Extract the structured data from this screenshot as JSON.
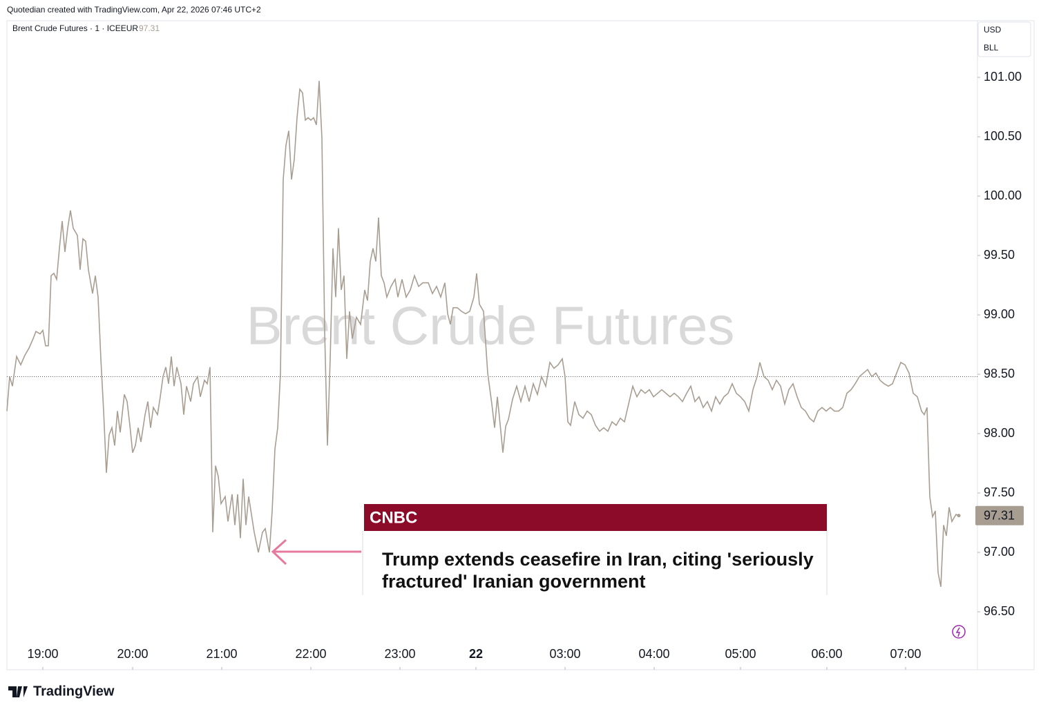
{
  "chart_data": {
    "type": "line",
    "header": "Quotedian created with TradingView.com, Apr 22, 2026 07:46 UTC+2",
    "legend_label": "Brent Crude Futures · 1 · ICEEUR",
    "last_value": 97.31,
    "watermark": "Brent Crude Futures",
    "currency": "USD",
    "unit": "BLL",
    "brand": "TradingView",
    "annotation": {
      "source": "CNBC",
      "headline": "Trump extends ceasefire in Iran, citing 'seriously fractured' Iranian government",
      "color": "#8c0b29",
      "arrow_color": "#e67a9c"
    },
    "color": "#a89d91",
    "reference_line": 98.48,
    "xlim": [
      0,
      1405
    ],
    "ylim": [
      96.012,
      101.477
    ],
    "xticks": [
      {
        "value": 52,
        "label": "19:00"
      },
      {
        "value": 182,
        "label": "20:00"
      },
      {
        "value": 311,
        "label": "21:00"
      },
      {
        "value": 440,
        "label": "22:00"
      },
      {
        "value": 569,
        "label": "23:00"
      },
      {
        "value": 679,
        "label": "22"
      },
      {
        "value": 808,
        "label": "03:00"
      },
      {
        "value": 937,
        "label": "04:00"
      },
      {
        "value": 1062,
        "label": "05:00"
      },
      {
        "value": 1187,
        "label": "06:00"
      },
      {
        "value": 1301,
        "label": "07:00"
      }
    ],
    "yticks": [
      {
        "value": 96.5,
        "label": "96.50"
      },
      {
        "value": 97,
        "label": "97.00"
      },
      {
        "value": 97.5,
        "label": "97.50"
      },
      {
        "value": 98,
        "label": "98.00"
      },
      {
        "value": 98.5,
        "label": "98.50"
      },
      {
        "value": 99,
        "label": "99.00"
      },
      {
        "value": 99.5,
        "label": "99.50"
      },
      {
        "value": 100,
        "label": "100.00"
      },
      {
        "value": 100.5,
        "label": "100.50"
      },
      {
        "value": 101,
        "label": "101.00"
      }
    ],
    "x": [
      0,
      4,
      8,
      14,
      20,
      26,
      32,
      38,
      42,
      48,
      52,
      56,
      60,
      64,
      68,
      72,
      76,
      80,
      84,
      88,
      92,
      96,
      102,
      106,
      110,
      114,
      118,
      124,
      128,
      132,
      136,
      140,
      144,
      148,
      152,
      156,
      160,
      164,
      170,
      174,
      178,
      182,
      186,
      190,
      194,
      200,
      204,
      208,
      212,
      218,
      222,
      226,
      230,
      234,
      238,
      242,
      246,
      252,
      256,
      260,
      266,
      270,
      276,
      280,
      286,
      290,
      294,
      298,
      302,
      306,
      310,
      316,
      320,
      326,
      330,
      334,
      338,
      342,
      346,
      350,
      354,
      358,
      364,
      370,
      374,
      380,
      384,
      388,
      392,
      396,
      400,
      404,
      408,
      412,
      416,
      420,
      424,
      428,
      432,
      436,
      440,
      444,
      448,
      452,
      456,
      460,
      464,
      468,
      472,
      476,
      480,
      484,
      488,
      492,
      496,
      500,
      506,
      512,
      518,
      522,
      526,
      530,
      534,
      538,
      542,
      546,
      550,
      556,
      562,
      566,
      572,
      578,
      584,
      590,
      596,
      602,
      610,
      616,
      622,
      628,
      634,
      638,
      642,
      646,
      652,
      658,
      664,
      670,
      676,
      680,
      684,
      690,
      696,
      702,
      706,
      710,
      714,
      718,
      722,
      726,
      732,
      738,
      744,
      750,
      756,
      762,
      768,
      774,
      780,
      786,
      792,
      798,
      804,
      808,
      812,
      816,
      822,
      828,
      834,
      840,
      846,
      852,
      858,
      864,
      870,
      876,
      882,
      888,
      894,
      900,
      906,
      912,
      918,
      924,
      930,
      936,
      942,
      948,
      954,
      960,
      966,
      972,
      978,
      984,
      990,
      996,
      1002,
      1008,
      1014,
      1020,
      1026,
      1032,
      1038,
      1044,
      1050,
      1056,
      1062,
      1068,
      1074,
      1080,
      1086,
      1090,
      1096,
      1102,
      1108,
      1114,
      1120,
      1126,
      1132,
      1138,
      1144,
      1150,
      1156,
      1162,
      1168,
      1174,
      1180,
      1186,
      1192,
      1198,
      1204,
      1210,
      1216,
      1222,
      1228,
      1234,
      1240,
      1246,
      1252,
      1258,
      1264,
      1270,
      1276,
      1282,
      1288,
      1294,
      1300,
      1306,
      1312,
      1318,
      1324,
      1328,
      1332,
      1336,
      1340,
      1344,
      1348,
      1352,
      1356,
      1360,
      1364,
      1368,
      1374,
      1378
    ],
    "values": [
      98.19,
      98.48,
      98.4,
      98.65,
      98.58,
      98.66,
      98.72,
      98.8,
      98.86,
      98.84,
      98.87,
      98.74,
      98.74,
      99.33,
      99.35,
      99.3,
      99.56,
      99.79,
      99.53,
      99.73,
      99.88,
      99.73,
      99.67,
      99.38,
      99.64,
      99.62,
      99.38,
      99.18,
      99.33,
      99.15,
      98.63,
      98.19,
      97.67,
      97.99,
      98.05,
      97.9,
      98.19,
      98.01,
      98.33,
      98.27,
      98.07,
      97.84,
      97.9,
      98.05,
      97.93,
      98.16,
      98.27,
      98.05,
      98.22,
      98.16,
      98.31,
      98.48,
      98.56,
      98.42,
      98.65,
      98.4,
      98.56,
      98.42,
      98.16,
      98.4,
      98.27,
      98.42,
      98.48,
      98.31,
      98.45,
      98.42,
      98.56,
      97.17,
      97.73,
      97.64,
      97.41,
      97.47,
      97.26,
      97.49,
      97.23,
      97.49,
      97.12,
      97.62,
      97.23,
      97.47,
      97.32,
      97.17,
      97.0,
      97.17,
      97.2,
      97.0,
      97.35,
      97.87,
      98.05,
      98.51,
      100.14,
      100.43,
      100.55,
      100.14,
      100.31,
      100.66,
      100.9,
      100.87,
      100.64,
      100.66,
      100.64,
      100.66,
      100.6,
      100.97,
      100.49,
      98.86,
      97.9,
      98.63,
      99.56,
      99.15,
      99.73,
      99.21,
      99.33,
      98.63,
      99.03,
      98.8,
      98.98,
      98.92,
      99.21,
      99.12,
      99.45,
      99.56,
      99.45,
      99.82,
      99.33,
      99.27,
      99.15,
      99.24,
      99.3,
      99.15,
      99.3,
      99.15,
      99.21,
      99.33,
      99.24,
      99.27,
      99.27,
      99.18,
      99.24,
      99.15,
      99.27,
      99.01,
      98.92,
      99.06,
      99.06,
      99.03,
      99.01,
      99.03,
      99.15,
      99.35,
      99.09,
      99.03,
      98.51,
      98.25,
      98.05,
      98.31,
      98.08,
      97.84,
      98.06,
      98.12,
      98.29,
      98.4,
      98.27,
      98.4,
      98.27,
      98.42,
      98.33,
      98.48,
      98.4,
      98.6,
      98.55,
      98.58,
      98.63,
      98.48,
      98.1,
      98.07,
      98.27,
      98.16,
      98.13,
      98.19,
      98.16,
      98.07,
      98.02,
      98.05,
      98.02,
      98.1,
      98.07,
      98.13,
      98.1,
      98.25,
      98.4,
      98.31,
      98.37,
      98.34,
      98.37,
      98.31,
      98.34,
      98.37,
      98.34,
      98.31,
      98.34,
      98.31,
      98.27,
      98.34,
      98.4,
      98.27,
      98.31,
      98.22,
      98.27,
      98.19,
      98.31,
      98.25,
      98.31,
      98.34,
      98.42,
      98.34,
      98.31,
      98.27,
      98.19,
      98.37,
      98.48,
      98.6,
      98.48,
      98.45,
      98.37,
      98.45,
      98.4,
      98.25,
      98.37,
      98.42,
      98.31,
      98.22,
      98.19,
      98.13,
      98.1,
      98.19,
      98.22,
      98.19,
      98.22,
      98.19,
      98.19,
      98.22,
      98.34,
      98.37,
      98.42,
      98.48,
      98.51,
      98.54,
      98.48,
      98.51,
      98.45,
      98.42,
      98.4,
      98.42,
      98.51,
      98.6,
      98.58,
      98.51,
      98.34,
      98.31,
      98.19,
      98.16,
      98.22,
      97.47,
      97.3,
      97.35,
      96.83,
      96.71,
      97.23,
      97.14,
      97.38,
      97.26,
      97.32,
      97.31
    ]
  }
}
